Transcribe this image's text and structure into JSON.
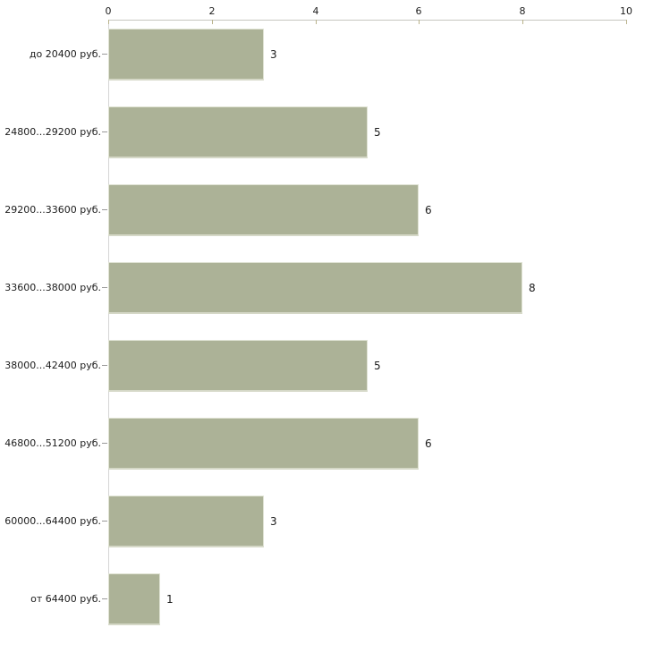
{
  "chart_data": {
    "type": "bar",
    "orientation": "horizontal",
    "title": "",
    "categories": [
      "до 20400 руб.",
      "24800...29200 руб.",
      "29200...33600 руб.",
      "33600...38000 руб.",
      "38000...42400 руб.",
      "46800...51200 руб.",
      "60000...64400 руб.",
      "от 64400 руб."
    ],
    "values": [
      3,
      5,
      6,
      8,
      5,
      6,
      3,
      1
    ],
    "x_ticks": [
      "0",
      "2",
      "4",
      "6",
      "8",
      "10"
    ],
    "xlim": [
      0,
      10
    ],
    "grid": false,
    "legend": false,
    "axis_position": "top",
    "colors": {
      "bar_fill": "#acb297",
      "bar_edge": "#d5d8c7",
      "bar_edge_light": "#dfe2d3",
      "axis_line": "#c6c6c0",
      "x_tick_mark": "#b9b28a",
      "y_tick_mark": "#999999",
      "y_axis_line": "#d6d6d6",
      "text": "#1c1c1c",
      "background": "#ffffff"
    }
  }
}
